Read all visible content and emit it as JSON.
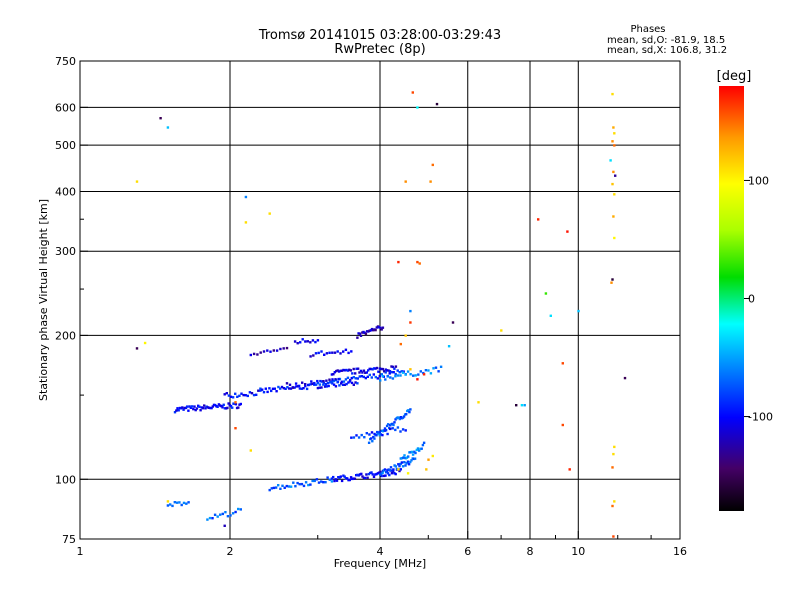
{
  "chart_data": {
    "type": "scatter",
    "title": "Tromsø 20141015 03:28:00-03:29:43",
    "subtitle": "RwPretec (8p)",
    "xlabel": "Frequency [MHz]",
    "ylabel": "Stationary phase Virtual Height [km]",
    "x_scale": "log",
    "y_scale": "log",
    "xlim": [
      1,
      16
    ],
    "ylim": [
      75,
      750
    ],
    "x_ticks": [
      1,
      2,
      4,
      6,
      8,
      10,
      16
    ],
    "x_tick_labels": [
      "1",
      "2",
      "4",
      "6",
      "8",
      "10",
      "16"
    ],
    "y_ticks": [
      75,
      100,
      200,
      300,
      400,
      500,
      600,
      750
    ],
    "y_tick_labels": [
      "75",
      "100",
      "200",
      "300",
      "400",
      "500",
      "600",
      "750"
    ],
    "grid": true,
    "stats": {
      "heading": "Phases",
      "line_o": "mean, sd,O: -81.9, 18.5",
      "line_x": "mean, sd,X: 106.8, 31.2"
    },
    "colorbar": {
      "label": "[deg]",
      "range": [
        -180,
        180
      ],
      "ticks": [
        100,
        0,
        -100
      ],
      "tick_labels": [
        "100",
        "0",
        "-100"
      ]
    },
    "traces": [
      {
        "x": [
          1.55,
          2.1
        ],
        "y": [
          140,
          143
        ],
        "phase": -100,
        "n": 55
      },
      {
        "x": [
          1.95,
          2.3
        ],
        "y": [
          150,
          152
        ],
        "phase": -100,
        "n": 18
      },
      {
        "x": [
          2.3,
          3.6
        ],
        "y": [
          153,
          160
        ],
        "phase": -95,
        "n": 55
      },
      {
        "x": [
          3.0,
          4.5
        ],
        "y": [
          158,
          168
        ],
        "phase": -85,
        "n": 45
      },
      {
        "x": [
          3.2,
          4.3
        ],
        "y": [
          167,
          171
        ],
        "phase": -105,
        "n": 45
      },
      {
        "x": [
          2.6,
          3.3
        ],
        "y": [
          157,
          161
        ],
        "phase": -110,
        "n": 18
      },
      {
        "x": [
          2.9,
          3.5
        ],
        "y": [
          183,
          185
        ],
        "phase": -105,
        "n": 16
      },
      {
        "x": [
          2.7,
          3.0
        ],
        "y": [
          194,
          196
        ],
        "phase": -100,
        "n": 10
      },
      {
        "x": [
          2.2,
          2.6
        ],
        "y": [
          184,
          186
        ],
        "phase": -120,
        "n": 12
      },
      {
        "x": [
          3.6,
          4.05
        ],
        "y": [
          200,
          208
        ],
        "phase": -120,
        "n": 22
      },
      {
        "x": [
          4.0,
          5.3
        ],
        "y": [
          163,
          170
        ],
        "phase": -60,
        "n": 25
      },
      {
        "x": [
          3.8,
          4.6
        ],
        "y": [
          120,
          140
        ],
        "phase": -70,
        "n": 40
      },
      {
        "x": [
          3.5,
          4.5
        ],
        "y": [
          122,
          128
        ],
        "phase": -90,
        "n": 22
      },
      {
        "x": [
          2.4,
          3.2
        ],
        "y": [
          96,
          100
        ],
        "phase": -70,
        "n": 30
      },
      {
        "x": [
          3.2,
          4.4
        ],
        "y": [
          100,
          104
        ],
        "phase": -100,
        "n": 55
      },
      {
        "x": [
          4.0,
          4.7
        ],
        "y": [
          103,
          110
        ],
        "phase": -75,
        "n": 30
      },
      {
        "x": [
          4.4,
          4.9
        ],
        "y": [
          110,
          118
        ],
        "phase": -60,
        "n": 20
      },
      {
        "x": [
          1.8,
          2.1
        ],
        "y": [
          83,
          86
        ],
        "phase": -70,
        "n": 14
      },
      {
        "x": [
          1.5,
          1.65
        ],
        "y": [
          88,
          90
        ],
        "phase": -75,
        "n": 10
      }
    ],
    "points": [
      {
        "x": 1.3,
        "y": 188,
        "phase": -150
      },
      {
        "x": 1.35,
        "y": 193,
        "phase": 100
      },
      {
        "x": 1.3,
        "y": 420,
        "phase": 110
      },
      {
        "x": 1.45,
        "y": 570,
        "phase": -150
      },
      {
        "x": 1.5,
        "y": 545,
        "phase": -40
      },
      {
        "x": 2.15,
        "y": 390,
        "phase": -60
      },
      {
        "x": 2.15,
        "y": 345,
        "phase": 110
      },
      {
        "x": 2.4,
        "y": 360,
        "phase": 110
      },
      {
        "x": 2.05,
        "y": 145,
        "phase": 150
      },
      {
        "x": 2.05,
        "y": 128,
        "phase": 160
      },
      {
        "x": 2.2,
        "y": 115,
        "phase": 110
      },
      {
        "x": 1.95,
        "y": 80,
        "phase": -120
      },
      {
        "x": 1.5,
        "y": 90,
        "phase": 110
      },
      {
        "x": 4.65,
        "y": 645,
        "phase": 160
      },
      {
        "x": 4.75,
        "y": 600,
        "phase": -20
      },
      {
        "x": 5.2,
        "y": 610,
        "phase": -160
      },
      {
        "x": 5.1,
        "y": 455,
        "phase": 150
      },
      {
        "x": 5.05,
        "y": 420,
        "phase": 140
      },
      {
        "x": 4.5,
        "y": 420,
        "phase": 140
      },
      {
        "x": 4.35,
        "y": 285,
        "phase": 170
      },
      {
        "x": 4.75,
        "y": 285,
        "phase": 160
      },
      {
        "x": 4.8,
        "y": 283,
        "phase": 150
      },
      {
        "x": 4.6,
        "y": 225,
        "phase": -60
      },
      {
        "x": 4.6,
        "y": 213,
        "phase": 165
      },
      {
        "x": 4.4,
        "y": 192,
        "phase": 150
      },
      {
        "x": 4.5,
        "y": 200,
        "phase": 120
      },
      {
        "x": 5.6,
        "y": 213,
        "phase": -150
      },
      {
        "x": 5.5,
        "y": 190,
        "phase": -40
      },
      {
        "x": 4.6,
        "y": 170,
        "phase": 120
      },
      {
        "x": 4.75,
        "y": 162,
        "phase": 175
      },
      {
        "x": 4.9,
        "y": 166,
        "phase": 170
      },
      {
        "x": 4.95,
        "y": 105,
        "phase": 120
      },
      {
        "x": 5.0,
        "y": 110,
        "phase": 135
      },
      {
        "x": 5.1,
        "y": 112,
        "phase": 105
      },
      {
        "x": 4.55,
        "y": 103,
        "phase": 100
      },
      {
        "x": 4.35,
        "y": 105,
        "phase": 110
      },
      {
        "x": 6.3,
        "y": 145,
        "phase": 110
      },
      {
        "x": 7.0,
        "y": 205,
        "phase": 110
      },
      {
        "x": 7.5,
        "y": 143,
        "phase": -160
      },
      {
        "x": 7.7,
        "y": 143,
        "phase": -30
      },
      {
        "x": 7.8,
        "y": 143,
        "phase": -50
      },
      {
        "x": 8.3,
        "y": 350,
        "phase": 170
      },
      {
        "x": 8.6,
        "y": 245,
        "phase": 30
      },
      {
        "x": 8.8,
        "y": 220,
        "phase": -30
      },
      {
        "x": 9.3,
        "y": 175,
        "phase": 160
      },
      {
        "x": 9.3,
        "y": 130,
        "phase": 160
      },
      {
        "x": 9.5,
        "y": 330,
        "phase": 175
      },
      {
        "x": 9.6,
        "y": 105,
        "phase": 170
      },
      {
        "x": 10.0,
        "y": 225,
        "phase": -40
      },
      {
        "x": 11.7,
        "y": 640,
        "phase": 110
      },
      {
        "x": 11.75,
        "y": 545,
        "phase": 130
      },
      {
        "x": 11.8,
        "y": 530,
        "phase": 110
      },
      {
        "x": 11.7,
        "y": 510,
        "phase": 140
      },
      {
        "x": 11.8,
        "y": 500,
        "phase": 150
      },
      {
        "x": 11.6,
        "y": 465,
        "phase": -30
      },
      {
        "x": 11.75,
        "y": 440,
        "phase": 140
      },
      {
        "x": 11.85,
        "y": 432,
        "phase": -130
      },
      {
        "x": 11.7,
        "y": 415,
        "phase": 120
      },
      {
        "x": 11.8,
        "y": 395,
        "phase": 110
      },
      {
        "x": 11.75,
        "y": 355,
        "phase": 130
      },
      {
        "x": 11.8,
        "y": 320,
        "phase": 100
      },
      {
        "x": 11.7,
        "y": 262,
        "phase": -160
      },
      {
        "x": 11.65,
        "y": 258,
        "phase": 140
      },
      {
        "x": 11.8,
        "y": 117,
        "phase": 110
      },
      {
        "x": 11.75,
        "y": 113,
        "phase": 110
      },
      {
        "x": 11.7,
        "y": 106,
        "phase": 150
      },
      {
        "x": 11.8,
        "y": 90,
        "phase": 110
      },
      {
        "x": 11.7,
        "y": 88,
        "phase": 150
      },
      {
        "x": 11.75,
        "y": 76,
        "phase": 160
      },
      {
        "x": 12.4,
        "y": 163,
        "phase": -150
      }
    ]
  }
}
